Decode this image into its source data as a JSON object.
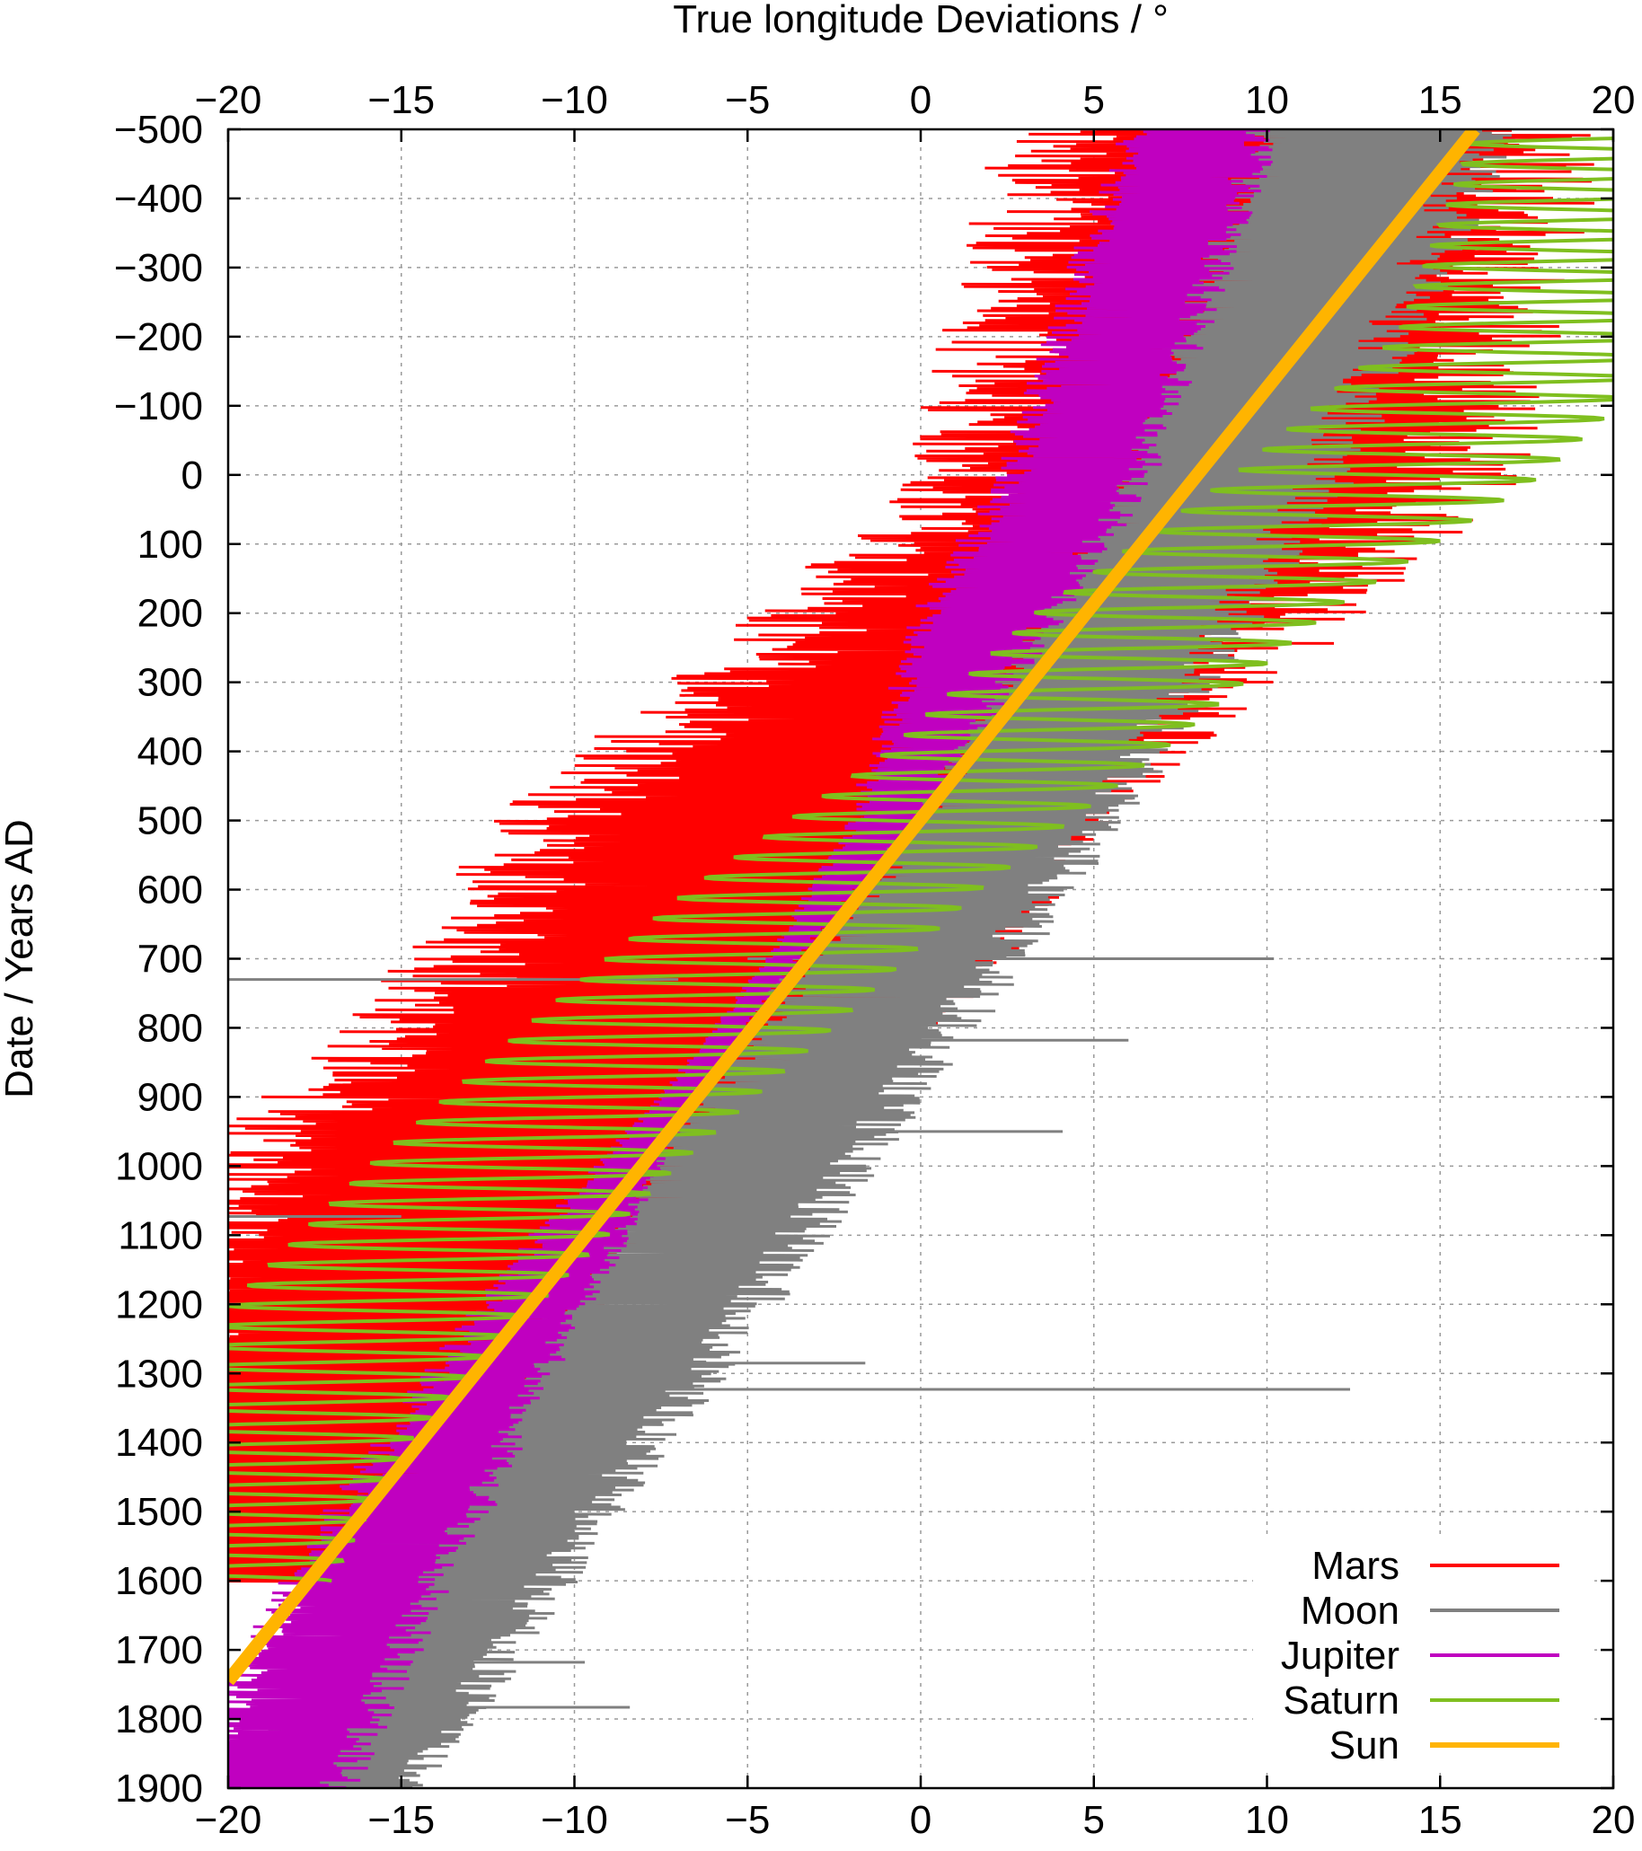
{
  "chart_data": {
    "type": "line",
    "title": "",
    "xlabel": "True longitude Deviations / °",
    "ylabel": "Date / Years AD",
    "xlim": [
      -20,
      20
    ],
    "ylim": [
      -500,
      1900
    ],
    "y_inverted": true,
    "x_ticks": [
      "−20",
      "−15",
      "−10",
      "−5",
      "0",
      "5",
      "10",
      "15",
      "20"
    ],
    "x_tick_values": [
      -20,
      -15,
      -10,
      -5,
      0,
      5,
      10,
      15,
      20
    ],
    "y_ticks": [
      "−500",
      "−400",
      "−300",
      "−200",
      "−100",
      "0",
      "100",
      "200",
      "300",
      "400",
      "500",
      "600",
      "700",
      "800",
      "900",
      "1000",
      "1100",
      "1200",
      "1300",
      "1400",
      "1500",
      "1600",
      "1700",
      "1800",
      "1900"
    ],
    "y_tick_values": [
      -500,
      -400,
      -300,
      -200,
      -100,
      0,
      100,
      200,
      300,
      400,
      500,
      600,
      700,
      800,
      900,
      1000,
      1100,
      1200,
      1300,
      1400,
      1500,
      1600,
      1700,
      1800,
      1900
    ],
    "grid": true,
    "legend_position": "bottom-right",
    "series": [
      {
        "name": "Mars",
        "color": "#ff0000",
        "style": "oscillating band",
        "center": [
          [
            -500,
            11
          ],
          [
            0,
            8.5
          ],
          [
            200,
            4
          ],
          [
            500,
            -3.5
          ],
          [
            700,
            -6
          ],
          [
            1000,
            -12.5
          ],
          [
            1300,
            -16
          ],
          [
            1600,
            -18
          ]
        ],
        "half_width": [
          [
            -500,
            9
          ],
          [
            200,
            9
          ],
          [
            500,
            9
          ],
          [
            1000,
            9
          ],
          [
            1400,
            7
          ],
          [
            1800,
            4
          ]
        ],
        "outliers": []
      },
      {
        "name": "Moon",
        "color": "#808080",
        "style": "oscillating band",
        "center": [
          [
            -500,
            13
          ],
          [
            0,
            8.5
          ],
          [
            500,
            2.5
          ],
          [
            1000,
            -5
          ],
          [
            1500,
            -12
          ],
          [
            1900,
            -17
          ]
        ],
        "half_width": [
          [
            -500,
            4.5
          ],
          [
            200,
            4
          ],
          [
            500,
            3.5
          ],
          [
            1000,
            4
          ],
          [
            1500,
            3.5
          ],
          [
            1900,
            3
          ]
        ],
        "outliers": [
          {
            "y": 700,
            "x1": -5,
            "x2": 10.2
          },
          {
            "y": 730,
            "x1": -20,
            "x2": -7
          },
          {
            "y": 818,
            "x1": -1.5,
            "x2": 6
          },
          {
            "y": 950,
            "x1": -4,
            "x2": 4.1
          },
          {
            "y": 1073,
            "x1": -20,
            "x2": -15
          },
          {
            "y": 1200,
            "x1": -20,
            "x2": -19
          },
          {
            "y": 1285,
            "x1": -9,
            "x2": -1.6
          },
          {
            "y": 1323,
            "x1": -9.5,
            "x2": 12.4
          },
          {
            "y": 1718,
            "x1": -15,
            "x2": -9.7
          },
          {
            "y": 1783,
            "x1": -15,
            "x2": -8.4
          }
        ]
      },
      {
        "name": "Jupiter",
        "color": "#c000c0",
        "style": "oscillating band",
        "center": [
          [
            -500,
            8
          ],
          [
            0,
            4.5
          ],
          [
            200,
            2
          ],
          [
            500,
            -1
          ],
          [
            1000,
            -8.5
          ],
          [
            1300,
            -12.5
          ],
          [
            1600,
            -16
          ],
          [
            1900,
            -19
          ]
        ],
        "half_width": [
          [
            -500,
            2.5
          ],
          [
            200,
            2.3
          ],
          [
            500,
            1.2
          ],
          [
            700,
            0.5
          ],
          [
            900,
            0.6
          ],
          [
            1100,
            1.5
          ],
          [
            1500,
            2.5
          ],
          [
            1900,
            2.8
          ]
        ],
        "outliers": []
      },
      {
        "name": "Saturn",
        "color": "#7fbf1f",
        "style": "zigzag",
        "center": [
          [
            -500,
            20
          ],
          [
            -200,
            18
          ],
          [
            0,
            13.5
          ],
          [
            200,
            7.5
          ],
          [
            400,
            3
          ],
          [
            600,
            -2.5
          ],
          [
            800,
            -7
          ],
          [
            1000,
            -11.5
          ],
          [
            1200,
            -15.5
          ],
          [
            1400,
            -18.5
          ],
          [
            1600,
            -20
          ]
        ],
        "half_width": [
          [
            -500,
            4
          ],
          [
            0,
            4.5
          ],
          [
            400,
            4
          ],
          [
            800,
            4.5
          ],
          [
            1200,
            4.5
          ],
          [
            1600,
            3
          ]
        ],
        "outliers": []
      },
      {
        "name": "Sun",
        "color": "#ffb400",
        "style": "thick line",
        "center": [
          [
            -500,
            16
          ],
          [
            1745,
            -20
          ]
        ],
        "half_width": [
          [
            -500,
            0.3
          ],
          [
            1745,
            0.3
          ]
        ],
        "outliers": []
      }
    ]
  }
}
